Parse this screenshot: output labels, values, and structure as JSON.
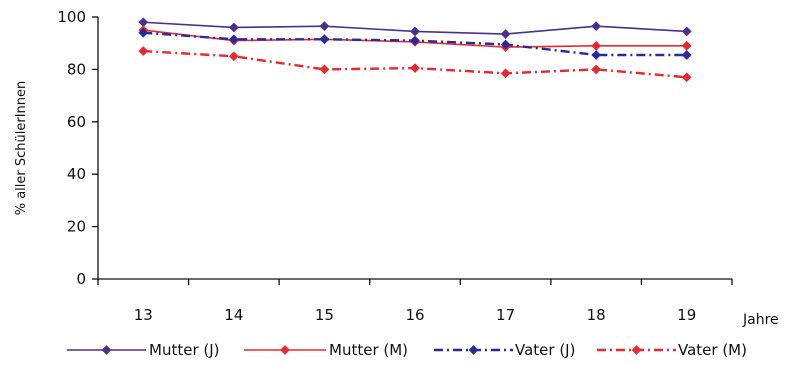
{
  "chart_data": {
    "type": "line",
    "title": "",
    "xlabel": "Jahre",
    "ylabel": "% aller SchülerInnen",
    "categories": [
      "13",
      "14",
      "15",
      "16",
      "17",
      "18",
      "19"
    ],
    "ylim": [
      0,
      100
    ],
    "yticks": [
      0,
      20,
      40,
      60,
      80,
      100
    ],
    "grid": false,
    "legend_position": "bottom",
    "series": [
      {
        "name": "Mutter (J)",
        "values": [
          98,
          96,
          96.5,
          94.5,
          93.5,
          96.5,
          94.5
        ],
        "color": "#4b2e8f",
        "dash": "solid",
        "marker": "diamond"
      },
      {
        "name": "Mutter (M)",
        "values": [
          95,
          91,
          91.5,
          90.5,
          88.5,
          89,
          89
        ],
        "color": "#e8282e",
        "dash": "solid",
        "marker": "diamond"
      },
      {
        "name": "Vater (J)",
        "values": [
          94,
          91.5,
          91.5,
          91,
          89.5,
          85.5,
          85.5
        ],
        "color": "#2a2a9c",
        "dash": "dashdot",
        "marker": "diamond"
      },
      {
        "name": "Vater (M)",
        "values": [
          87,
          85,
          80,
          80.5,
          78.5,
          80,
          77
        ],
        "color": "#e8282e",
        "dash": "dashdot",
        "marker": "diamond"
      }
    ]
  }
}
